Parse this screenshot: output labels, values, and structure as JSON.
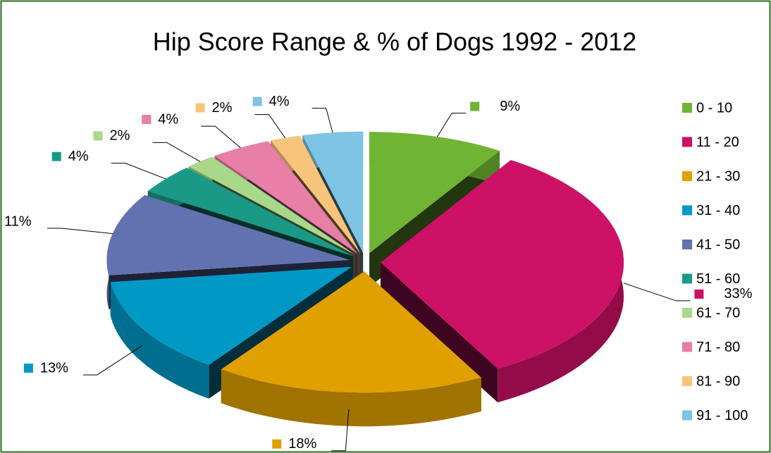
{
  "chart_data": {
    "type": "pie3d",
    "title": "Hip Score Range & % of Dogs 1992 - 2012",
    "categories": [
      "0 - 10",
      "11 - 20",
      "21 - 30",
      "31 - 40",
      "41 - 50",
      "51 - 60",
      "61 - 70",
      "71 - 80",
      "81 - 90",
      "91 - 100"
    ],
    "values": [
      9,
      33,
      18,
      13,
      11,
      4,
      2,
      4,
      2,
      4
    ],
    "value_labels": [
      "9%",
      "33%",
      "18%",
      "13%",
      "11%",
      "4%",
      "2%",
      "4%",
      "2%",
      "4%"
    ],
    "colors": [
      "#70b433",
      "#cc1166",
      "#e0a000",
      "#0099c6",
      "#6272b0",
      "#1a9a86",
      "#a8d88a",
      "#e77fa6",
      "#f8c47c",
      "#7dc3e4"
    ],
    "legend": "right"
  }
}
